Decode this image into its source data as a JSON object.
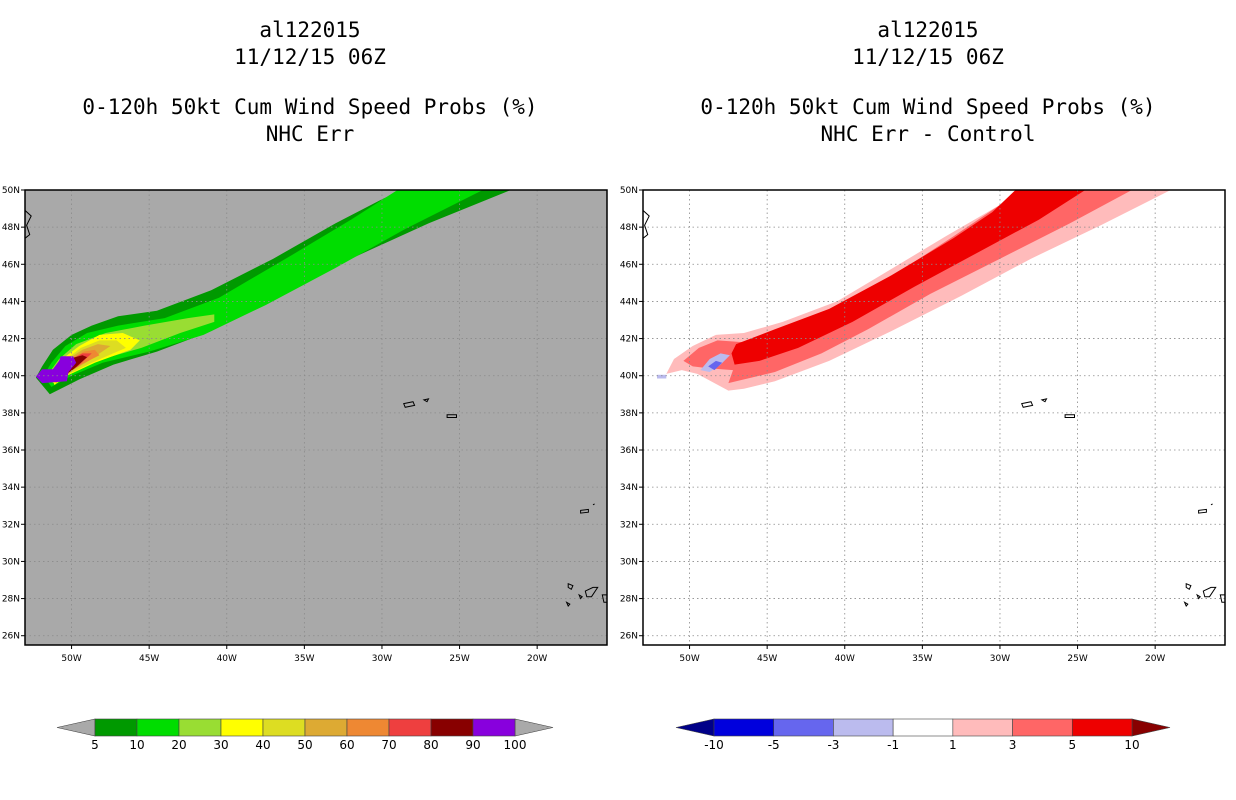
{
  "panels": [
    {
      "id": "left",
      "title_storm": "al122015",
      "title_date": "11/12/15 06Z",
      "title_product": "0-120h 50kt Cum Wind Speed Probs (%)",
      "title_variant": "NHC Err"
    },
    {
      "id": "right",
      "title_storm": "al122015",
      "title_date": "11/12/15 06Z",
      "title_product": "0-120h 50kt Cum Wind Speed Probs (%)",
      "title_variant": "NHC Err - Control"
    }
  ],
  "chart_data": [
    {
      "type": "heatmap",
      "title": "0-120h 50kt Cum Wind Speed Probs (%) - NHC Err",
      "units": "%",
      "background_color": "#a9a9a9",
      "lon_range": [
        -53,
        -15.5
      ],
      "lat_range": [
        25.5,
        50
      ],
      "x_ticks": [
        "50W",
        "45W",
        "40W",
        "35W",
        "30W",
        "25W",
        "20W"
      ],
      "x_tick_values": [
        -50,
        -45,
        -40,
        -35,
        -30,
        -25,
        -20
      ],
      "y_ticks": [
        "26N",
        "28N",
        "30N",
        "32N",
        "34N",
        "36N",
        "38N",
        "40N",
        "42N",
        "44N",
        "46N",
        "48N",
        "50N"
      ],
      "y_tick_values": [
        26,
        28,
        30,
        32,
        34,
        36,
        38,
        40,
        42,
        44,
        46,
        48,
        50
      ],
      "colorbar": {
        "labels": [
          "5",
          "10",
          "20",
          "30",
          "40",
          "50",
          "60",
          "70",
          "80",
          "90",
          "100"
        ],
        "colors": [
          "#009900",
          "#00dd00",
          "#99dd33",
          "#ffff00",
          "#dddd22",
          "#ddaa33",
          "#ee8833",
          "#ee3f3f",
          "#880000",
          "#8800dd"
        ],
        "end_color": "#a9a9a9"
      },
      "contours": [
        {
          "level": 5,
          "color": "#009900",
          "polygon": [
            [
              -52.3,
              39.9
            ],
            [
              -51.9,
              40.5
            ],
            [
              -51.2,
              41.4
            ],
            [
              -50,
              42.2
            ],
            [
              -48.7,
              42.7
            ],
            [
              -47,
              43.2
            ],
            [
              -44.5,
              43.5
            ],
            [
              -41,
              44.6
            ],
            [
              -37,
              46.3
            ],
            [
              -33,
              48.2
            ],
            [
              -30,
              49.5
            ],
            [
              -28.7,
              50
            ],
            [
              -21.7,
              50
            ],
            [
              -27,
              48.2
            ],
            [
              -32,
              46.3
            ],
            [
              -36.8,
              44.2
            ],
            [
              -41,
              42.4
            ],
            [
              -44.5,
              41.3
            ],
            [
              -47.3,
              40.6
            ],
            [
              -49.5,
              39.8
            ],
            [
              -51.4,
              39
            ]
          ]
        },
        {
          "level": 10,
          "color": "#00dd00",
          "polygon": [
            [
              -51.8,
              40
            ],
            [
              -51.3,
              40.7
            ],
            [
              -50.4,
              41.6
            ],
            [
              -49,
              42.3
            ],
            [
              -47,
              42.7
            ],
            [
              -44,
              43.1
            ],
            [
              -40.5,
              44.2
            ],
            [
              -36,
              46.4
            ],
            [
              -32,
              48.4
            ],
            [
              -29,
              50
            ],
            [
              -23.5,
              50
            ],
            [
              -28.5,
              47.9
            ],
            [
              -33,
              45.8
            ],
            [
              -37.5,
              43.8
            ],
            [
              -41.5,
              42.2
            ],
            [
              -45,
              41.3
            ],
            [
              -48,
              40.7
            ],
            [
              -50,
              40
            ],
            [
              -51.3,
              39.4
            ]
          ]
        },
        {
          "level": 20,
          "color": "#99dd33",
          "polygon": [
            [
              -51.5,
              40.1
            ],
            [
              -50.8,
              40.9
            ],
            [
              -49.7,
              41.7
            ],
            [
              -47.8,
              42.3
            ],
            [
              -45.3,
              42.7
            ],
            [
              -42.5,
              43.1
            ],
            [
              -40.8,
              43.3
            ],
            [
              -40.8,
              42.9
            ],
            [
              -43,
              42.3
            ],
            [
              -45.5,
              41.5
            ],
            [
              -48,
              40.9
            ],
            [
              -50.2,
              40.1
            ],
            [
              -51.2,
              39.6
            ]
          ]
        },
        {
          "level": 30,
          "color": "#ffff00",
          "polygon": [
            [
              -51.4,
              40.1
            ],
            [
              -50.6,
              40.9
            ],
            [
              -49.5,
              41.6
            ],
            [
              -48.2,
              42.2
            ],
            [
              -46.7,
              42.3
            ],
            [
              -45.6,
              41.9
            ],
            [
              -46.2,
              41.4
            ],
            [
              -48.5,
              40.7
            ],
            [
              -50.3,
              40
            ],
            [
              -51.1,
              39.5
            ]
          ]
        },
        {
          "level": 40,
          "color": "#dddd22",
          "polygon": [
            [
              -51.3,
              40.1
            ],
            [
              -50.5,
              40.8
            ],
            [
              -49.4,
              41.5
            ],
            [
              -48.2,
              41.9
            ],
            [
              -47.1,
              41.9
            ],
            [
              -46.5,
              41.5
            ],
            [
              -48.7,
              40.7
            ],
            [
              -50.4,
              40
            ],
            [
              -51,
              39.6
            ]
          ]
        },
        {
          "level": 50,
          "color": "#ddaa33",
          "polygon": [
            [
              -51.2,
              40.1
            ],
            [
              -50.4,
              40.8
            ],
            [
              -49.3,
              41.4
            ],
            [
              -48.3,
              41.7
            ],
            [
              -47.5,
              41.6
            ],
            [
              -48.9,
              40.8
            ],
            [
              -50.5,
              40
            ],
            [
              -51,
              39.6
            ]
          ]
        },
        {
          "level": 60,
          "color": "#ee8833",
          "polygon": [
            [
              -51.2,
              40.1
            ],
            [
              -50.3,
              40.8
            ],
            [
              -49.2,
              41.3
            ],
            [
              -48.5,
              41.4
            ],
            [
              -48.2,
              41.1
            ],
            [
              -49.4,
              40.6
            ],
            [
              -50.6,
              40
            ],
            [
              -51,
              39.6
            ]
          ]
        },
        {
          "level": 70,
          "color": "#ee3f3f",
          "polygon": [
            [
              -51.1,
              40.1
            ],
            [
              -50.2,
              40.8
            ],
            [
              -49.3,
              41.2
            ],
            [
              -48.7,
              41.2
            ],
            [
              -49.6,
              40.5
            ],
            [
              -50.6,
              40
            ],
            [
              -50.9,
              39.7
            ]
          ]
        },
        {
          "level": 80,
          "color": "#880000",
          "polygon": [
            [
              -51,
              40.1
            ],
            [
              -50.2,
              40.9
            ],
            [
              -49.3,
              41.1
            ],
            [
              -49,
              41
            ],
            [
              -49.8,
              40.4
            ],
            [
              -50.6,
              39.9
            ],
            [
              -50.9,
              39.7
            ]
          ]
        },
        {
          "level": 90,
          "color": "#8800dd",
          "polygon": [
            [
              -52.3,
              39.95
            ],
            [
              -51.9,
              40.35
            ],
            [
              -51.2,
              40.35
            ],
            [
              -50.8,
              40.8
            ],
            [
              -50.7,
              41.05
            ],
            [
              -49.9,
              41.05
            ],
            [
              -49.7,
              40.7
            ],
            [
              -50.2,
              40.2
            ],
            [
              -50.3,
              39.7
            ],
            [
              -51.9,
              39.6
            ]
          ]
        }
      ]
    },
    {
      "type": "heatmap",
      "title": "0-120h 50kt Cum Wind Speed Probs (%) - NHC Err - Control",
      "units": "%",
      "background_color": "#ffffff",
      "lon_range": [
        -53,
        -15.5
      ],
      "lat_range": [
        25.5,
        50
      ],
      "x_ticks": [
        "50W",
        "45W",
        "40W",
        "35W",
        "30W",
        "25W",
        "20W"
      ],
      "x_tick_values": [
        -50,
        -45,
        -40,
        -35,
        -30,
        -25,
        -20
      ],
      "y_ticks": [
        "26N",
        "28N",
        "30N",
        "32N",
        "34N",
        "36N",
        "38N",
        "40N",
        "42N",
        "44N",
        "46N",
        "48N",
        "50N"
      ],
      "y_tick_values": [
        26,
        28,
        30,
        32,
        34,
        36,
        38,
        40,
        42,
        44,
        46,
        48,
        50
      ],
      "colorbar": {
        "labels": [
          "-10",
          "-5",
          "-3",
          "-1",
          "1",
          "3",
          "5",
          "10"
        ],
        "colors": [
          "#0000dd",
          "#6666ee",
          "#bbbbee",
          "#ffffff",
          "#ffbbbb",
          "#ff6666",
          "#ee0000"
        ],
        "low_end_color": "#000088",
        "high_end_color": "#880000"
      },
      "contours": [
        {
          "level": 1,
          "color": "#ffbbbb",
          "polygon": [
            [
              -51.5,
              40.1
            ],
            [
              -51,
              40.9
            ],
            [
              -49.8,
              41.6
            ],
            [
              -48.3,
              42.2
            ],
            [
              -46.5,
              42.3
            ],
            [
              -44,
              42.9
            ],
            [
              -40.5,
              44
            ],
            [
              -37.5,
              45.5
            ],
            [
              -33.5,
              47.5
            ],
            [
              -30,
              49.2
            ],
            [
              -28.5,
              50
            ],
            [
              -19,
              50
            ],
            [
              -23.5,
              48.1
            ],
            [
              -28,
              46.3
            ],
            [
              -32.5,
              44.3
            ],
            [
              -37,
              42.4
            ],
            [
              -41,
              40.8
            ],
            [
              -44.5,
              39.7
            ],
            [
              -46.5,
              39.3
            ],
            [
              -47.5,
              39.2
            ],
            [
              -49.5,
              40.1
            ],
            [
              -50.5,
              40.3
            ]
          ]
        },
        {
          "level": 3,
          "color": "#ff6666",
          "polygon": [
            [
              -50.4,
              40.8
            ],
            [
              -49.4,
              41.5
            ],
            [
              -48.2,
              41.9
            ],
            [
              -46.5,
              41.8
            ],
            [
              -44,
              42.6
            ],
            [
              -40.5,
              43.7
            ],
            [
              -36.5,
              45.6
            ],
            [
              -33,
              47.5
            ],
            [
              -30,
              49.2
            ],
            [
              -27.5,
              50
            ],
            [
              -21.5,
              50
            ],
            [
              -25.5,
              48.2
            ],
            [
              -30,
              46.3
            ],
            [
              -34.5,
              44.4
            ],
            [
              -38.5,
              42.5
            ],
            [
              -41.5,
              41.2
            ],
            [
              -44.5,
              40.2
            ],
            [
              -47.5,
              39.6
            ],
            [
              -47.2,
              40.3
            ],
            [
              -48.8,
              40.4
            ],
            [
              -49.8,
              40.5
            ]
          ]
        },
        {
          "level": 5,
          "color": "#ee0000",
          "polygon": [
            [
              -47.3,
              41.2
            ],
            [
              -47,
              41.7
            ],
            [
              -44.5,
              42.5
            ],
            [
              -41,
              43.6
            ],
            [
              -37,
              45.4
            ],
            [
              -33,
              47.4
            ],
            [
              -30.5,
              48.8
            ],
            [
              -29,
              50
            ],
            [
              -24.5,
              50
            ],
            [
              -27.5,
              48.4
            ],
            [
              -31.5,
              46.6
            ],
            [
              -35.5,
              44.8
            ],
            [
              -39.5,
              42.9
            ],
            [
              -43,
              41.5
            ],
            [
              -45.5,
              40.8
            ],
            [
              -47.1,
              40.6
            ]
          ]
        },
        {
          "level": -1,
          "color": "#bbbbee",
          "polygon": [
            [
              -49.3,
              40.3
            ],
            [
              -48.7,
              40.9
            ],
            [
              -48,
              41.2
            ],
            [
              -47.4,
              41.1
            ],
            [
              -48,
              40.6
            ],
            [
              -48.7,
              40.2
            ]
          ]
        },
        {
          "level": -3,
          "color": "#6666ee",
          "polygon": [
            [
              -48.8,
              40.5
            ],
            [
              -48.3,
              40.8
            ],
            [
              -47.9,
              40.7
            ],
            [
              -48.4,
              40.3
            ]
          ]
        },
        {
          "level": -1,
          "color": "#bbbbee",
          "polygon": [
            [
              -52.1,
              40.05
            ],
            [
              -51.5,
              40.05
            ],
            [
              -51.5,
              39.85
            ],
            [
              -52.1,
              39.85
            ]
          ]
        }
      ]
    }
  ]
}
